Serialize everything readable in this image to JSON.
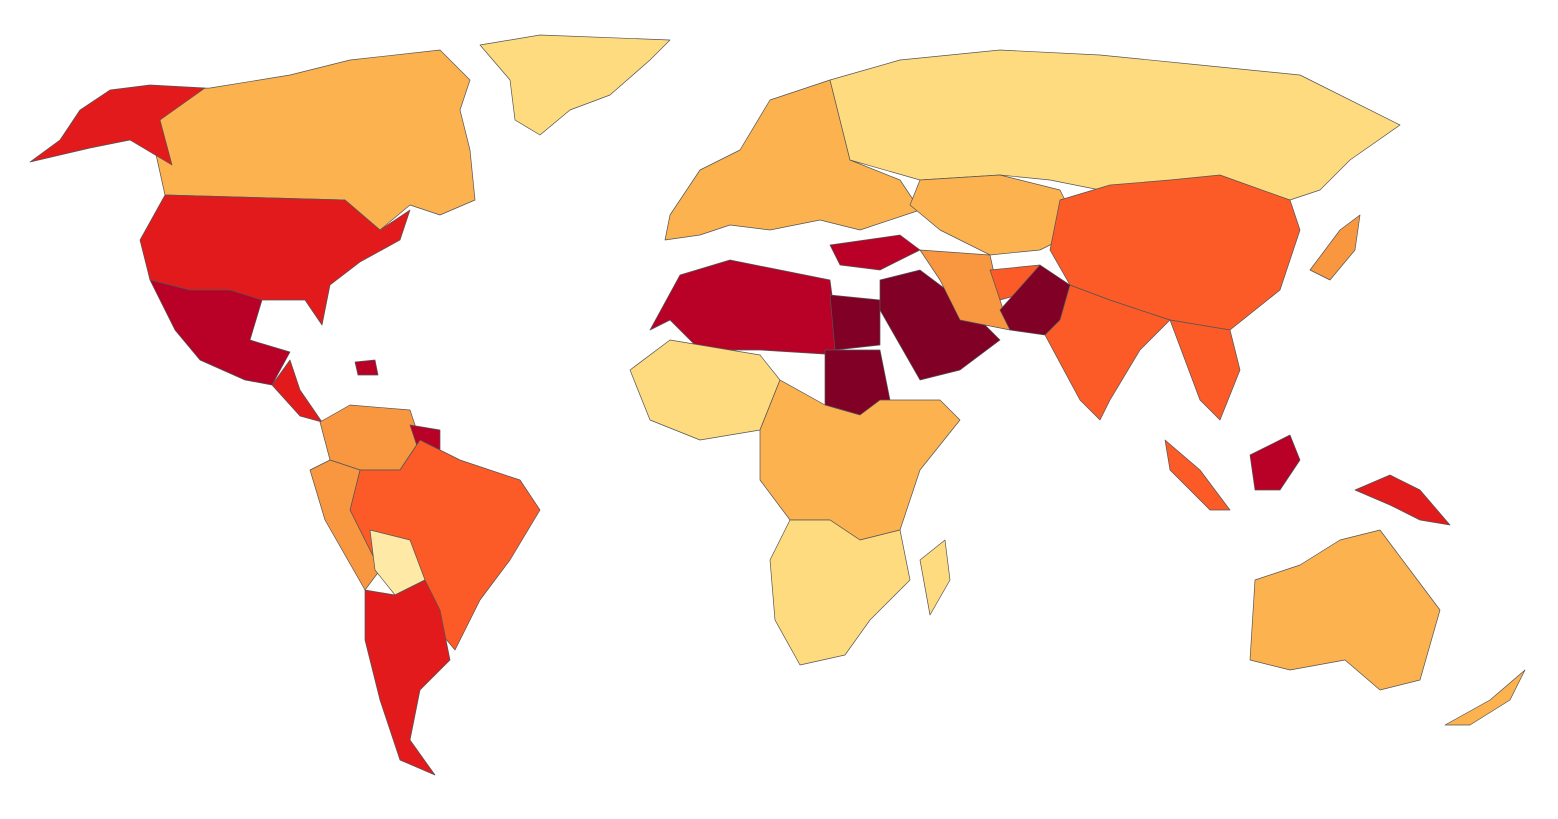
{
  "map": {
    "type": "choropleth",
    "palette": [
      "#fee9a6",
      "#fddb7e",
      "#fbb24f",
      "#f99740",
      "#fc5a26",
      "#e31a1c",
      "#b90026",
      "#800026"
    ]
  }
}
